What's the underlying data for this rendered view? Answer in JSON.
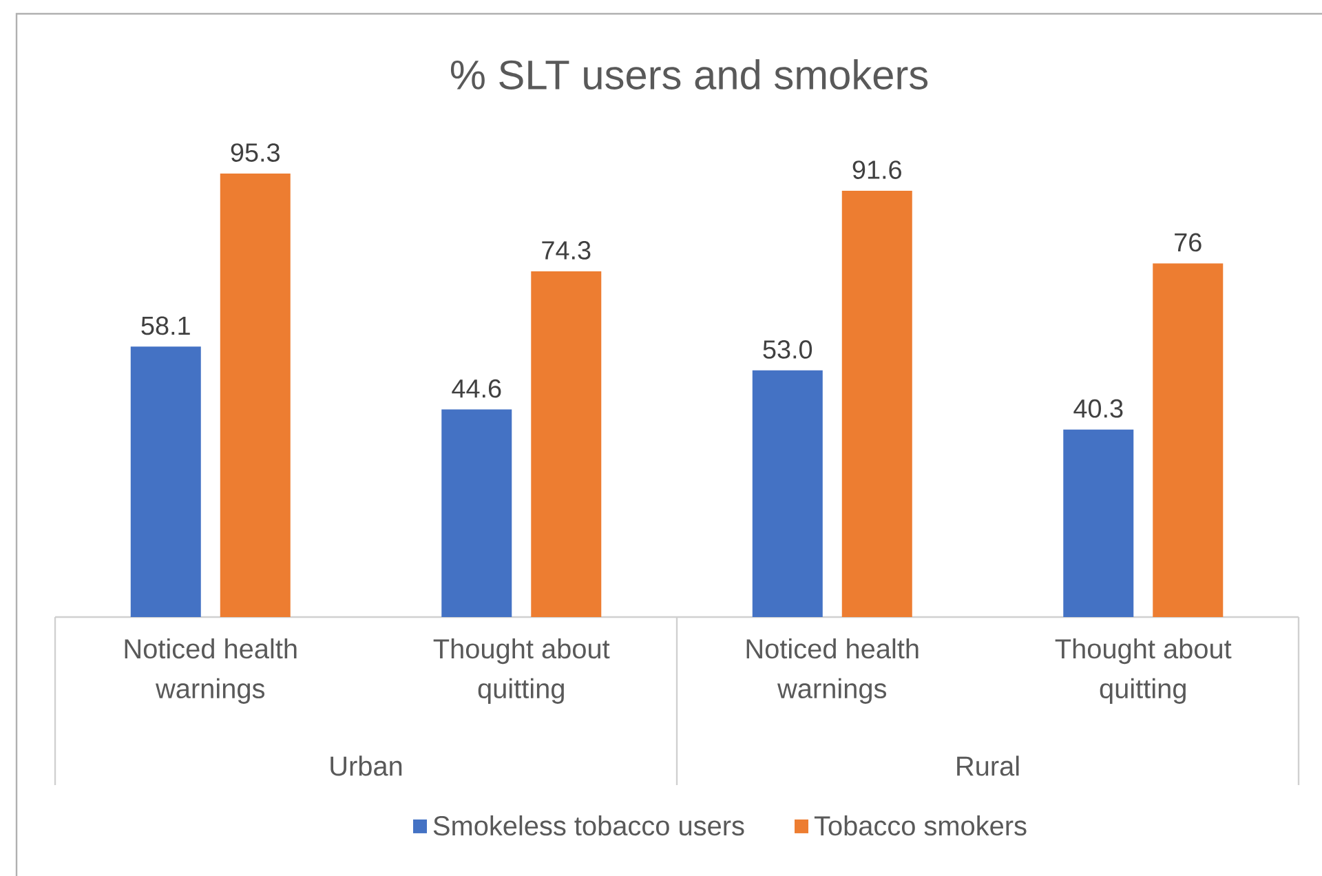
{
  "chart_data": {
    "type": "bar",
    "title": "% SLT users and smokers",
    "categories": [
      "Noticed health warnings",
      "Thought  about quitting",
      "Noticed health warnings",
      "Thought  about quitting"
    ],
    "series": [
      {
        "name": "Smokeless tobacco users",
        "color": "#4472c4",
        "values": [
          58.1,
          44.6,
          53.0,
          40.3
        ],
        "value_labels": [
          "58.1",
          "44.6",
          "53.0",
          "40.3"
        ]
      },
      {
        "name": "Tobacco smokers",
        "color": "#ed7d31",
        "values": [
          95.3,
          74.3,
          91.6,
          76
        ],
        "value_labels": [
          "95.3",
          "74.3",
          "91.6",
          "76"
        ]
      }
    ],
    "annotations": [
      "Urban",
      "Rural"
    ],
    "legend": "bottom"
  }
}
